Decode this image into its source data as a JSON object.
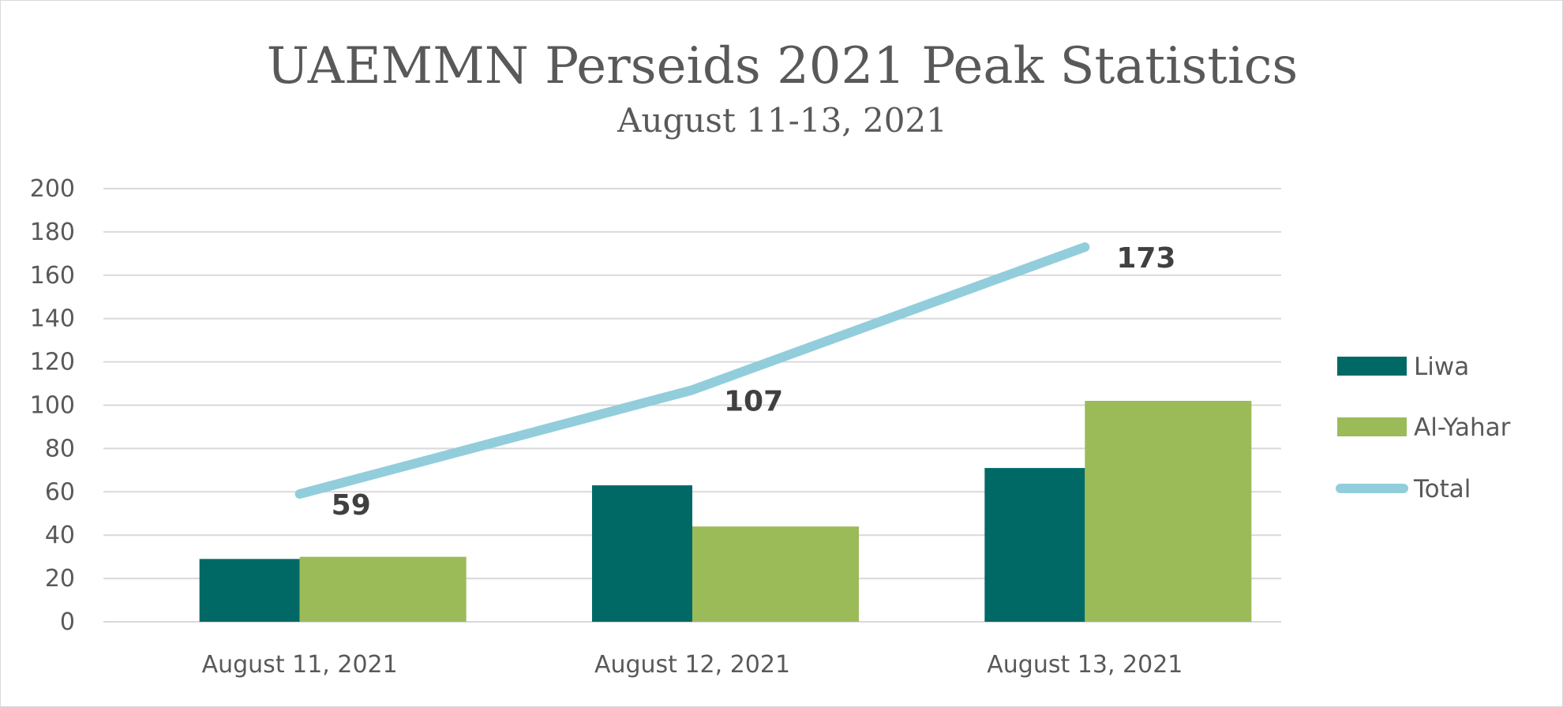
{
  "chart_data": {
    "type": "bar",
    "title": "UAEMMN Perseids 2021 Peak Statistics",
    "subtitle": "August 11-13, 2021",
    "categories": [
      "August 11, 2021",
      "August 12, 2021",
      "August 13, 2021"
    ],
    "series": [
      {
        "name": "Liwa",
        "type": "bar",
        "color": "#006966",
        "values": [
          29,
          63,
          71
        ]
      },
      {
        "name": "Al-Yahar",
        "type": "bar",
        "color": "#9BBB59",
        "values": [
          30,
          44,
          102
        ]
      },
      {
        "name": "Total",
        "type": "line",
        "color": "#92CDDC",
        "values": [
          59,
          107,
          173
        ],
        "data_labels": [
          "59",
          "107",
          "173"
        ]
      }
    ],
    "y_ticks": [
      "0",
      "20",
      "40",
      "60",
      "80",
      "100",
      "120",
      "140",
      "160",
      "180",
      "200"
    ],
    "ylim": [
      0,
      200
    ],
    "grid": true,
    "legend_position": "right"
  }
}
